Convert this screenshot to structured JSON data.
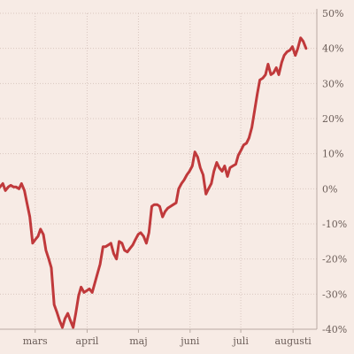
{
  "chart_data": {
    "type": "line",
    "title": "",
    "xlabel": "",
    "ylabel": "",
    "y_axis_position": "right",
    "ylim": [
      -40,
      50
    ],
    "y_ticks": [
      50,
      40,
      30,
      20,
      10,
      0,
      -10,
      -20,
      -30,
      -40
    ],
    "y_tick_labels": [
      "50%",
      "40%",
      "30%",
      "20%",
      "10%",
      "0%",
      "-10%",
      "-20%",
      "-30%",
      "-40%"
    ],
    "x_range": [
      0,
      100
    ],
    "x_ticks": [
      {
        "x": 11.1,
        "label": "mars"
      },
      {
        "x": 27.5,
        "label": "april"
      },
      {
        "x": 43.7,
        "label": "maj"
      },
      {
        "x": 60.0,
        "label": "juni"
      },
      {
        "x": 76.0,
        "label": "juli"
      },
      {
        "x": 92.5,
        "label": "augusti"
      }
    ],
    "grid": true,
    "colors": {
      "line": "#c0393b",
      "background": "#f7ebe5"
    },
    "series": [
      {
        "values": [
          [
            0,
            0.5
          ],
          [
            0.9,
            1.5
          ],
          [
            1.7,
            -0.5
          ],
          [
            2.6,
            0.5
          ],
          [
            3.4,
            1.0
          ],
          [
            4.3,
            0.5
          ],
          [
            5.1,
            0.5
          ],
          [
            6.0,
            0.0
          ],
          [
            6.8,
            1.5
          ],
          [
            7.7,
            -0.5
          ],
          [
            8.5,
            -4.0
          ],
          [
            9.4,
            -8.0
          ],
          [
            10.3,
            -15.5
          ],
          [
            11.1,
            -14.5
          ],
          [
            12.0,
            -13.5
          ],
          [
            12.8,
            -11.5
          ],
          [
            13.7,
            -13.0
          ],
          [
            14.5,
            -17.5
          ],
          [
            15.4,
            -20.0
          ],
          [
            16.2,
            -22.5
          ],
          [
            17.1,
            -33.0
          ],
          [
            17.9,
            -35.0
          ],
          [
            18.8,
            -37.5
          ],
          [
            19.7,
            -39.5
          ],
          [
            20.5,
            -37.0
          ],
          [
            21.4,
            -35.5
          ],
          [
            22.2,
            -37.5
          ],
          [
            23.1,
            -39.5
          ],
          [
            23.9,
            -35.5
          ],
          [
            24.8,
            -30.5
          ],
          [
            25.6,
            -28.0
          ],
          [
            26.5,
            -29.5
          ],
          [
            27.4,
            -29.0
          ],
          [
            28.2,
            -28.5
          ],
          [
            29.1,
            -29.5
          ],
          [
            29.9,
            -27.0
          ],
          [
            30.8,
            -24.0
          ],
          [
            31.6,
            -21.5
          ],
          [
            32.5,
            -16.5
          ],
          [
            33.3,
            -16.5
          ],
          [
            34.2,
            -16.0
          ],
          [
            35.0,
            -15.5
          ],
          [
            35.9,
            -18.5
          ],
          [
            36.8,
            -20.0
          ],
          [
            37.6,
            -15.0
          ],
          [
            38.5,
            -15.5
          ],
          [
            39.3,
            -17.5
          ],
          [
            40.2,
            -18.0
          ],
          [
            41.0,
            -17.0
          ],
          [
            41.9,
            -16.0
          ],
          [
            42.7,
            -14.5
          ],
          [
            43.6,
            -13.0
          ],
          [
            44.4,
            -12.5
          ],
          [
            45.3,
            -13.5
          ],
          [
            46.2,
            -15.5
          ],
          [
            47.0,
            -12.5
          ],
          [
            47.9,
            -5.0
          ],
          [
            48.7,
            -4.5
          ],
          [
            49.6,
            -4.5
          ],
          [
            50.4,
            -5.0
          ],
          [
            51.3,
            -8.0
          ],
          [
            52.1,
            -6.5
          ],
          [
            53.0,
            -5.5
          ],
          [
            53.8,
            -5.0
          ],
          [
            54.7,
            -4.5
          ],
          [
            55.6,
            -4.0
          ],
          [
            56.4,
            0.0
          ],
          [
            57.3,
            1.5
          ],
          [
            58.1,
            2.5
          ],
          [
            59.0,
            4.0
          ],
          [
            59.8,
            5.0
          ],
          [
            60.7,
            6.5
          ],
          [
            61.5,
            10.5
          ],
          [
            62.4,
            9.0
          ],
          [
            63.2,
            6.0
          ],
          [
            64.1,
            4.0
          ],
          [
            65.0,
            -1.5
          ],
          [
            65.8,
            0.0
          ],
          [
            66.7,
            1.5
          ],
          [
            67.5,
            5.0
          ],
          [
            68.4,
            7.5
          ],
          [
            69.2,
            6.0
          ],
          [
            70.1,
            5.0
          ],
          [
            70.9,
            6.5
          ],
          [
            71.8,
            3.5
          ],
          [
            72.6,
            6.0
          ],
          [
            73.5,
            6.5
          ],
          [
            74.4,
            7.0
          ],
          [
            75.2,
            9.5
          ],
          [
            76.1,
            11.0
          ],
          [
            76.9,
            12.5
          ],
          [
            77.8,
            13.0
          ],
          [
            78.6,
            14.5
          ],
          [
            79.5,
            17.5
          ],
          [
            80.3,
            22.0
          ],
          [
            81.2,
            27.0
          ],
          [
            82.0,
            31.0
          ],
          [
            82.9,
            31.5
          ],
          [
            83.8,
            32.5
          ],
          [
            84.6,
            35.5
          ],
          [
            85.5,
            32.5
          ],
          [
            86.3,
            33.0
          ],
          [
            87.2,
            34.5
          ],
          [
            88.0,
            32.5
          ],
          [
            88.9,
            36.0
          ],
          [
            89.7,
            38.0
          ],
          [
            90.6,
            39.0
          ],
          [
            91.5,
            39.5
          ],
          [
            92.3,
            40.5
          ],
          [
            93.2,
            38.0
          ],
          [
            94.0,
            40.0
          ],
          [
            94.9,
            43.0
          ],
          [
            95.7,
            42.0
          ],
          [
            96.6,
            40.0
          ]
        ]
      }
    ]
  }
}
